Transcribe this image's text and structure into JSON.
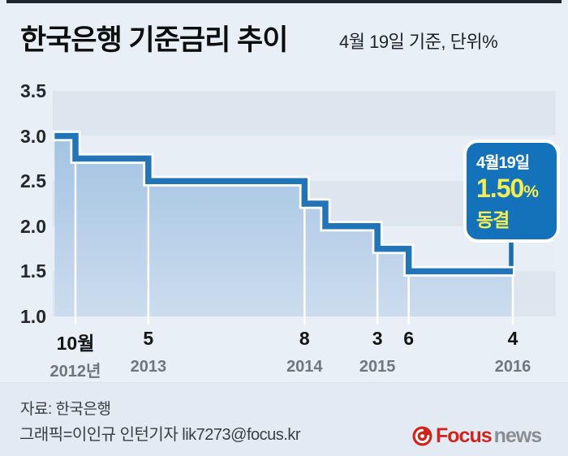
{
  "header": {
    "title": "한국은행 기준금리 추이",
    "subtitle": "4월 19일 기준, 단위%"
  },
  "callout": {
    "date": "4월19일",
    "value": "1.50",
    "unit": "%",
    "status": "동결"
  },
  "footer": {
    "source": "자료: 한국은행",
    "credit": "그래픽=이인규 인턴기자 lik7273@focus.kr",
    "logo": {
      "brand": "Focus",
      "suffix": "news"
    }
  },
  "colors": {
    "line_blue": "#2174b8",
    "area_top": "#a3c3e2",
    "area_bottom": "#ccdcee",
    "band_dark": "#dde5ef",
    "band_light": "#e7eef5",
    "callout_bg": "#1472ba",
    "callout_yellow": "#f3ef52",
    "pointer_blue": "#1a6db0",
    "logo_red": "#d0241b",
    "logo_gray": "#8a8e93",
    "tick_white": "#ffffff"
  },
  "chart_data": {
    "type": "area",
    "step": true,
    "title": "한국은행 기준금리 추이",
    "unit": "%",
    "as_of": "4월 19일 기준",
    "ylim": [
      1.0,
      3.5
    ],
    "ytick_labels": [
      "3.5",
      "3.0",
      "2.5",
      "2.0",
      "1.5",
      "1.0"
    ],
    "grid": "horizontal-bands",
    "legend": "none",
    "series": [
      {
        "name": "한국은행 기준금리",
        "points": [
          {
            "date": "2012-08",
            "rate": 3.0
          },
          {
            "date": "2012-10",
            "rate": 2.75
          },
          {
            "date": "2013-05",
            "rate": 2.5
          },
          {
            "date": "2014-08",
            "rate": 2.25
          },
          {
            "date": "2014-10",
            "rate": 2.0
          },
          {
            "date": "2015-03",
            "rate": 1.75
          },
          {
            "date": "2015-06",
            "rate": 1.5
          },
          {
            "date": "2016-04",
            "rate": 1.5
          }
        ]
      }
    ],
    "xticks": [
      {
        "date": "2012-10",
        "month_label": "10월",
        "year_label": "2012년"
      },
      {
        "date": "2013-05",
        "month_label": "5",
        "year_label": "2013"
      },
      {
        "date": "2014-08",
        "month_label": "8",
        "year_label": "2014"
      },
      {
        "date": "2015-03",
        "month_label": "3",
        "year_label": "2015"
      },
      {
        "date": "2015-06",
        "month_label": "6",
        "year_label": ""
      },
      {
        "date": "2016-04",
        "month_label": "4",
        "year_label": "2016"
      }
    ],
    "annotation": {
      "date_label": "4월19일",
      "value_label": "1.50%",
      "status": "동결",
      "anchor_date": "2016-04",
      "anchor_rate": 1.5
    }
  }
}
